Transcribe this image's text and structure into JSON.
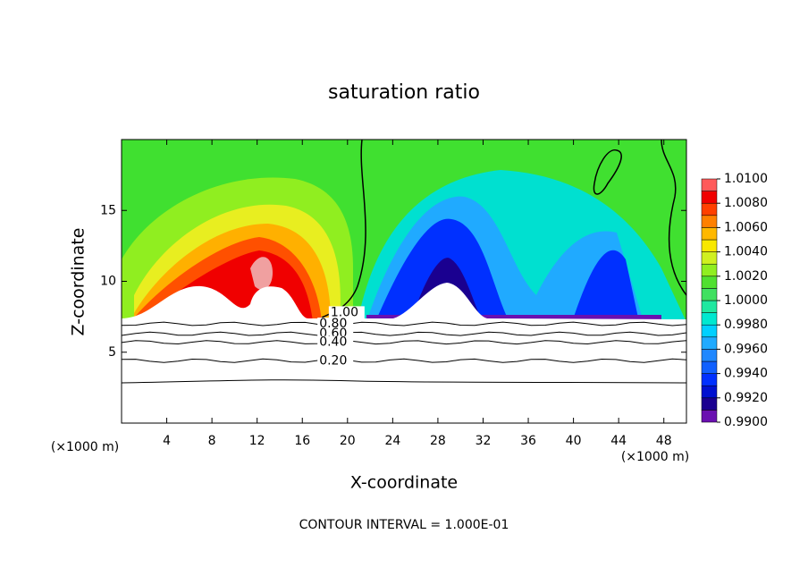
{
  "chart_data": {
    "type": "contour",
    "title": "saturation ratio",
    "x_label": "X-coordinate",
    "y_label": "Z-coordinate",
    "x_unit_label_left": "(×1000 m)",
    "x_unit_label_right": "(×1000 m)",
    "footer": "CONTOUR INTERVAL = 1.000E-01",
    "xlim": [
      0,
      50
    ],
    "ylim": [
      0,
      20
    ],
    "xticks": [
      4,
      8,
      12,
      16,
      20,
      24,
      28,
      32,
      36,
      40,
      44,
      48
    ],
    "yticks": [
      5,
      10,
      15
    ],
    "contour_labels": [
      {
        "value": 1.0,
        "label": "1.00",
        "x": 18.5,
        "y": 7.8
      },
      {
        "value": 0.8,
        "label": "0.80",
        "x": 17.5,
        "y": 7.0
      },
      {
        "value": 0.6,
        "label": "0.60",
        "x": 17.5,
        "y": 6.3
      },
      {
        "value": 0.4,
        "label": "0.40",
        "x": 17.5,
        "y": 5.7
      },
      {
        "value": 0.2,
        "label": "0.20",
        "x": 17.5,
        "y": 4.4
      }
    ],
    "colorbar": {
      "levels": [
        0.99,
        0.991,
        0.992,
        0.993,
        0.994,
        0.995,
        0.996,
        0.997,
        0.998,
        0.999,
        1.0,
        1.001,
        1.002,
        1.003,
        1.004,
        1.005,
        1.006,
        1.007,
        1.008,
        1.009,
        1.01
      ],
      "colors": [
        "#6a10b0",
        "#1a0090",
        "#0010d0",
        "#0030ff",
        "#1060ff",
        "#2088ff",
        "#20aaff",
        "#00d0ff",
        "#00e8d0",
        "#20e8a0",
        "#40e060",
        "#50e030",
        "#90ee20",
        "#d0f020",
        "#f8e800",
        "#ffb800",
        "#ff8000",
        "#ff4000",
        "#f00000",
        "#ff5a5a",
        "#f0a0a0"
      ],
      "ticks": [
        {
          "value": 0.99,
          "label": "0.9900"
        },
        {
          "value": 0.992,
          "label": "0.9920"
        },
        {
          "value": 0.994,
          "label": "0.9940"
        },
        {
          "value": 0.996,
          "label": "0.9960"
        },
        {
          "value": 0.998,
          "label": "0.9980"
        },
        {
          "value": 1.0,
          "label": "1.0000"
        },
        {
          "value": 1.002,
          "label": "1.0020"
        },
        {
          "value": 1.004,
          "label": "1.0040"
        },
        {
          "value": 1.006,
          "label": "1.0060"
        },
        {
          "value": 1.008,
          "label": "1.0080"
        },
        {
          "value": 1.01,
          "label": "1.0100"
        }
      ]
    }
  }
}
